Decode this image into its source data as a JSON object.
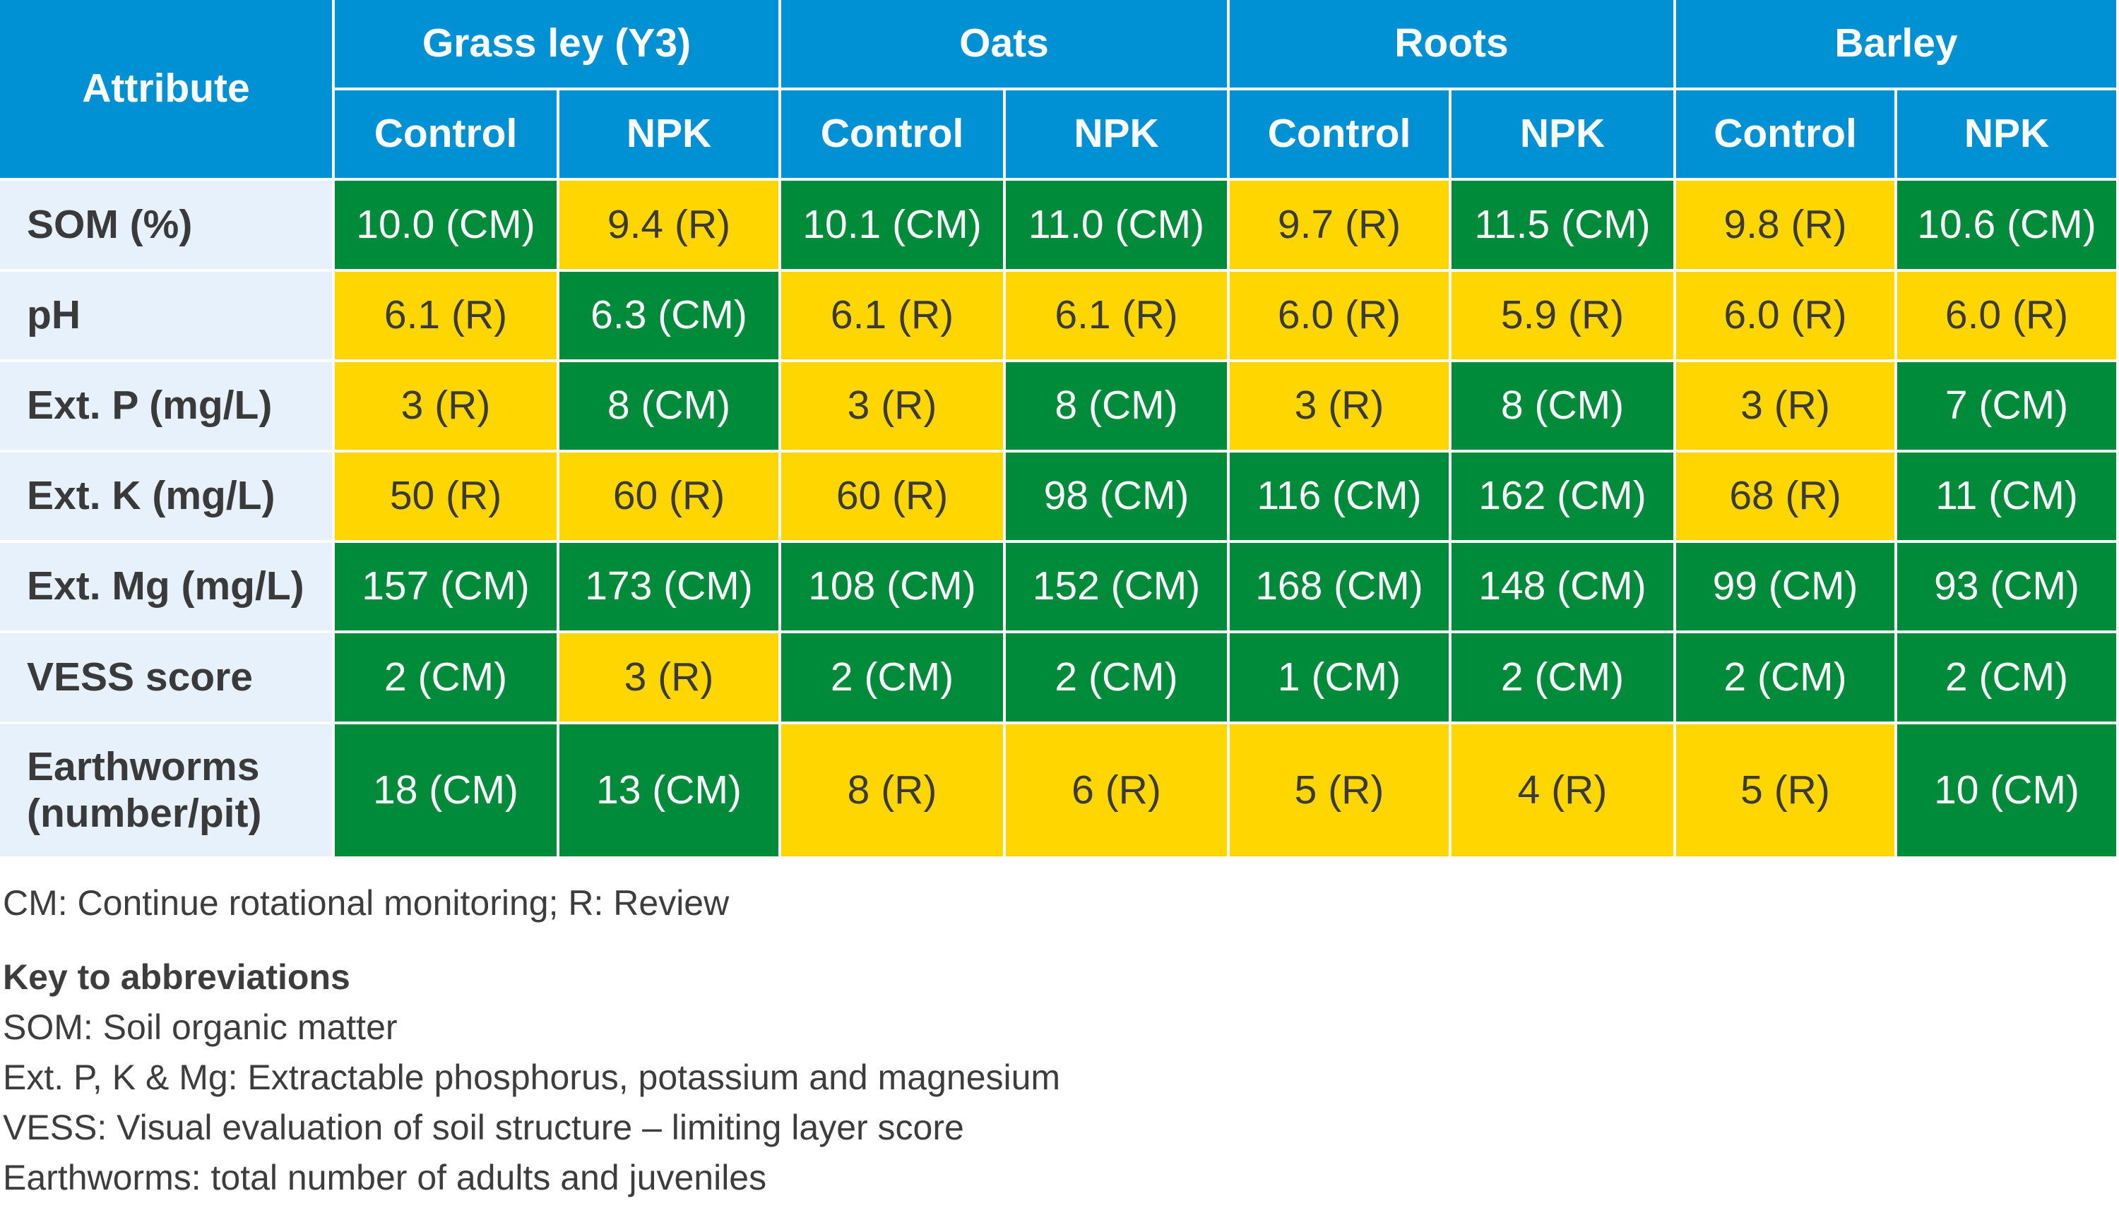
{
  "table": {
    "attribute_header": "Attribute",
    "groups": [
      {
        "label": "Grass ley (Y3)",
        "columns": [
          "Control",
          "NPK"
        ]
      },
      {
        "label": "Oats",
        "columns": [
          "Control",
          "NPK"
        ]
      },
      {
        "label": "Roots",
        "columns": [
          "Control",
          "NPK"
        ]
      },
      {
        "label": "Barley",
        "columns": [
          "Control",
          "NPK"
        ]
      }
    ],
    "cell_text_colors": {
      "#008b3b": "#ffffff",
      "#ffd600": "#3a3a3a"
    },
    "rows": [
      {
        "label": "SOM (%)",
        "cells": [
          {
            "text": "10.0 (CM)",
            "fill": "#008b3b"
          },
          {
            "text": "9.4 (R)",
            "fill": "#ffd600"
          },
          {
            "text": "10.1 (CM)",
            "fill": "#008b3b"
          },
          {
            "text": "11.0 (CM)",
            "fill": "#008b3b"
          },
          {
            "text": "9.7 (R)",
            "fill": "#ffd600"
          },
          {
            "text": "11.5 (CM)",
            "fill": "#008b3b"
          },
          {
            "text": "9.8 (R)",
            "fill": "#ffd600"
          },
          {
            "text": "10.6 (CM)",
            "fill": "#008b3b"
          }
        ]
      },
      {
        "label": "pH",
        "cells": [
          {
            "text": "6.1 (R)",
            "fill": "#ffd600"
          },
          {
            "text": "6.3 (CM)",
            "fill": "#008b3b"
          },
          {
            "text": "6.1 (R)",
            "fill": "#ffd600"
          },
          {
            "text": "6.1 (R)",
            "fill": "#ffd600"
          },
          {
            "text": "6.0 (R)",
            "fill": "#ffd600"
          },
          {
            "text": "5.9 (R)",
            "fill": "#ffd600"
          },
          {
            "text": "6.0 (R)",
            "fill": "#ffd600"
          },
          {
            "text": "6.0 (R)",
            "fill": "#ffd600"
          }
        ]
      },
      {
        "label": "Ext. P (mg/L)",
        "cells": [
          {
            "text": "3 (R)",
            "fill": "#ffd600"
          },
          {
            "text": "8 (CM)",
            "fill": "#008b3b"
          },
          {
            "text": "3 (R)",
            "fill": "#ffd600"
          },
          {
            "text": "8 (CM)",
            "fill": "#008b3b"
          },
          {
            "text": "3 (R)",
            "fill": "#ffd600"
          },
          {
            "text": "8 (CM)",
            "fill": "#008b3b"
          },
          {
            "text": "3 (R)",
            "fill": "#ffd600"
          },
          {
            "text": "7 (CM)",
            "fill": "#008b3b"
          }
        ]
      },
      {
        "label": "Ext. K (mg/L)",
        "cells": [
          {
            "text": "50 (R)",
            "fill": "#ffd600"
          },
          {
            "text": "60 (R)",
            "fill": "#ffd600"
          },
          {
            "text": "60 (R)",
            "fill": "#ffd600"
          },
          {
            "text": "98 (CM)",
            "fill": "#008b3b"
          },
          {
            "text": "116 (CM)",
            "fill": "#008b3b"
          },
          {
            "text": "162 (CM)",
            "fill": "#008b3b"
          },
          {
            "text": "68 (R)",
            "fill": "#ffd600"
          },
          {
            "text": "11 (CM)",
            "fill": "#008b3b"
          }
        ]
      },
      {
        "label": "Ext. Mg (mg/L)",
        "cells": [
          {
            "text": "157 (CM)",
            "fill": "#008b3b"
          },
          {
            "text": "173 (CM)",
            "fill": "#008b3b"
          },
          {
            "text": "108 (CM)",
            "fill": "#008b3b"
          },
          {
            "text": "152 (CM)",
            "fill": "#008b3b"
          },
          {
            "text": "168 (CM)",
            "fill": "#008b3b"
          },
          {
            "text": "148 (CM)",
            "fill": "#008b3b"
          },
          {
            "text": "99 (CM)",
            "fill": "#008b3b"
          },
          {
            "text": "93 (CM)",
            "fill": "#008b3b"
          }
        ]
      },
      {
        "label": "VESS score",
        "cells": [
          {
            "text": "2 (CM)",
            "fill": "#008b3b"
          },
          {
            "text": "3 (R)",
            "fill": "#ffd600"
          },
          {
            "text": "2 (CM)",
            "fill": "#008b3b"
          },
          {
            "text": "2 (CM)",
            "fill": "#008b3b"
          },
          {
            "text": "1 (CM)",
            "fill": "#008b3b"
          },
          {
            "text": "2 (CM)",
            "fill": "#008b3b"
          },
          {
            "text": "2 (CM)",
            "fill": "#008b3b"
          },
          {
            "text": "2 (CM)",
            "fill": "#008b3b"
          }
        ]
      },
      {
        "label": "Earthworms\n(number/pit)",
        "cells": [
          {
            "text": "18 (CM)",
            "fill": "#008b3b"
          },
          {
            "text": "13 (CM)",
            "fill": "#008b3b"
          },
          {
            "text": "8 (R)",
            "fill": "#ffd600"
          },
          {
            "text": "6 (R)",
            "fill": "#ffd600"
          },
          {
            "text": "5 (R)",
            "fill": "#ffd600"
          },
          {
            "text": "4 (R)",
            "fill": "#ffd600"
          },
          {
            "text": "5 (R)",
            "fill": "#ffd600"
          },
          {
            "text": "10 (CM)",
            "fill": "#008b3b"
          }
        ]
      }
    ]
  },
  "footer": {
    "note": "CM: Continue rotational monitoring; R: Review",
    "key_title": "Key to abbreviations",
    "key_items": [
      "SOM: Soil organic matter",
      "Ext. P, K & Mg: Extractable phosphorus, potassium and magnesium",
      "VESS: Visual evaluation of soil structure – limiting layer score",
      "Earthworms: total number of adults and juveniles"
    ]
  }
}
